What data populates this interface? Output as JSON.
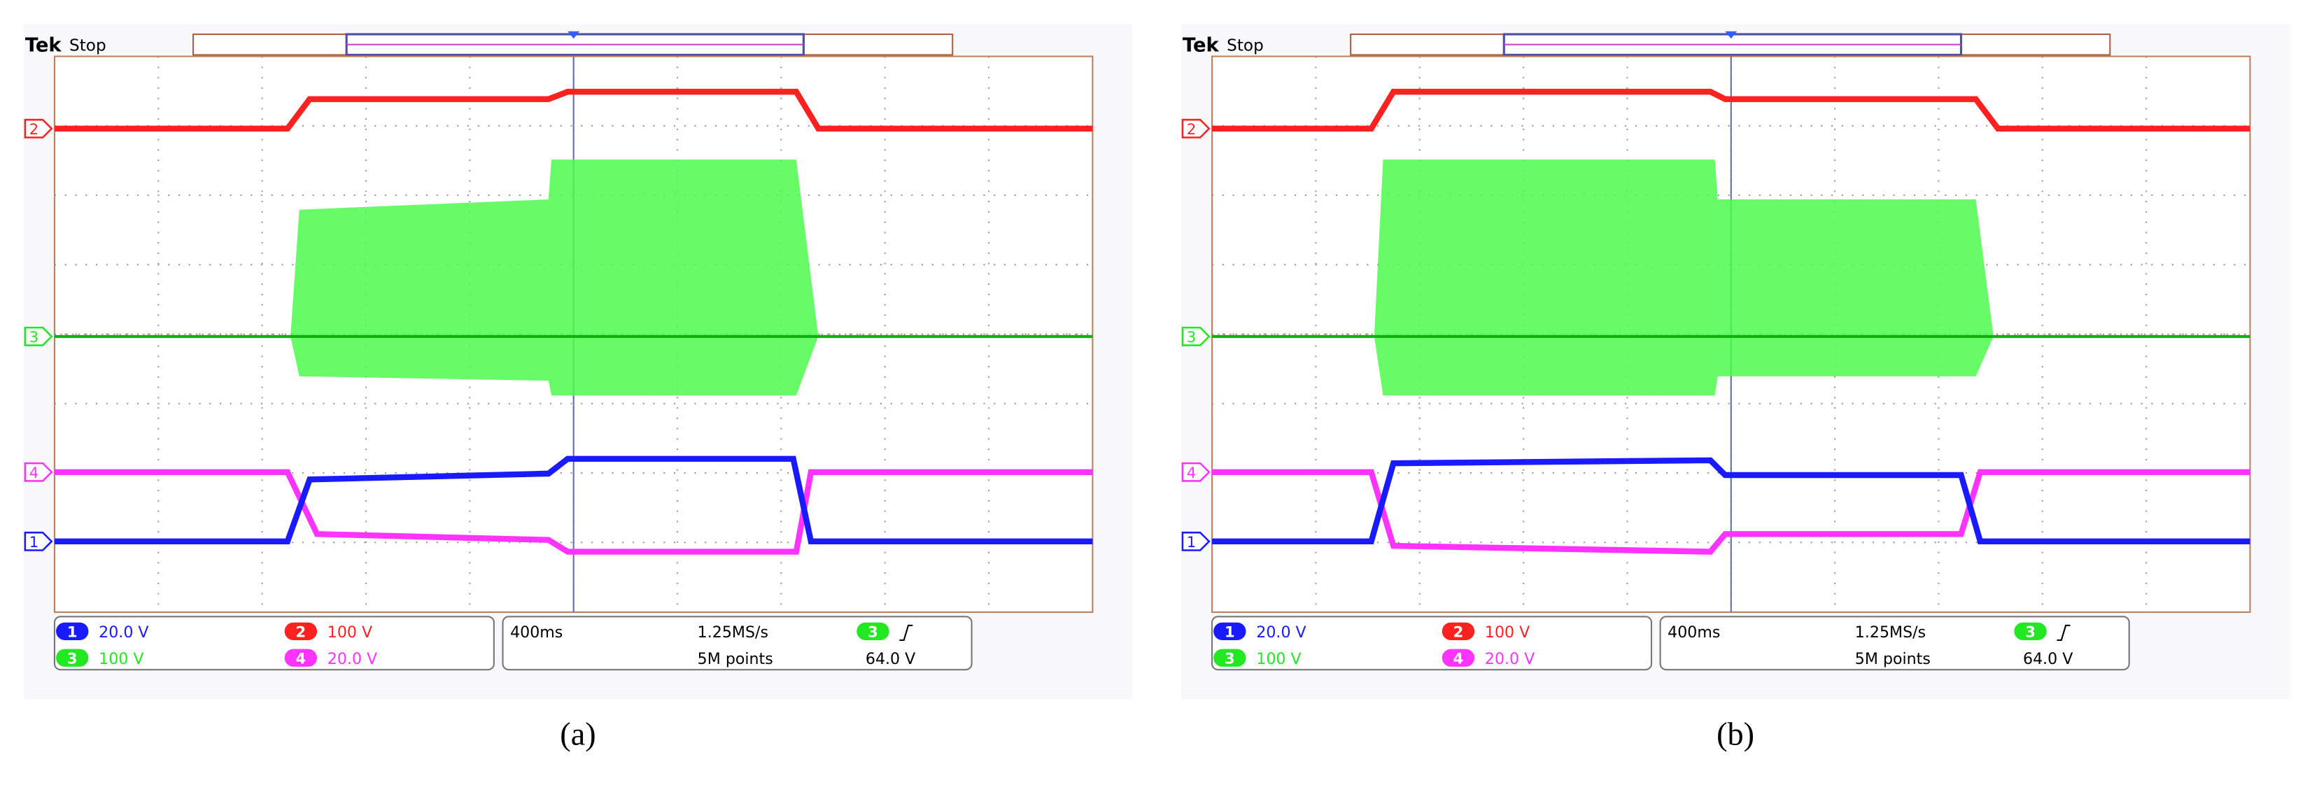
{
  "panels": [
    {
      "label": "(a)",
      "brand": "Tek",
      "status": "Stop",
      "channel_markers": [
        "2",
        "3",
        "4",
        "1"
      ],
      "settings": [
        {
          "badge": "1",
          "scale": "20.0 V"
        },
        {
          "badge": "2",
          "scale": "100 V"
        },
        {
          "badge": "3",
          "scale": "100 V"
        },
        {
          "badge": "4",
          "scale": "20.0 V"
        }
      ],
      "timebase": "400ms",
      "sample_rate": "1.25MS/s",
      "record": "5M points",
      "trigger_source": "3",
      "trigger_level": "64.0 V"
    },
    {
      "label": "(b)",
      "brand": "Tek",
      "status": "Stop",
      "channel_markers": [
        "2",
        "3",
        "4",
        "1"
      ],
      "settings": [
        {
          "badge": "1",
          "scale": "20.0 V"
        },
        {
          "badge": "2",
          "scale": "100 V"
        },
        {
          "badge": "3",
          "scale": "100 V"
        },
        {
          "badge": "4",
          "scale": "20.0 V"
        }
      ],
      "timebase": "400ms",
      "sample_rate": "1.25MS/s",
      "record": "5M points",
      "trigger_source": "3",
      "trigger_level": "64.0 V"
    }
  ]
}
